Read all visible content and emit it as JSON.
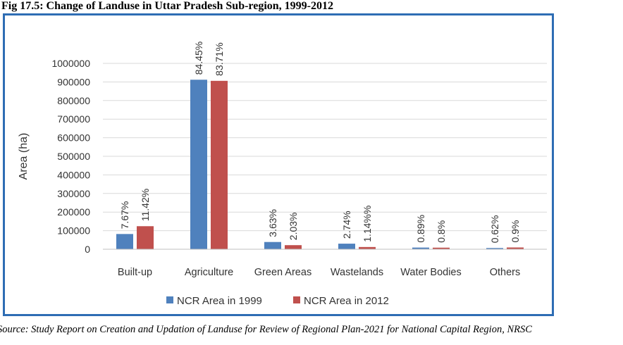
{
  "figure": {
    "title": "Fig 17.5:  Change of Landuse in Uttar Pradesh Sub-region, 1999-2012",
    "source": "Source: Study Report on Creation and Updation of Landuse for Review of Regional Plan-2021 for National Capital Region, NRSC"
  },
  "chart_data": {
    "type": "bar",
    "title": "",
    "xlabel": "",
    "ylabel": "Area (ha)",
    "ylim": [
      0,
      1000000
    ],
    "yticks": [
      0,
      100000,
      200000,
      300000,
      400000,
      500000,
      600000,
      700000,
      800000,
      900000,
      1000000
    ],
    "categories": [
      "Built-up",
      "Agriculture",
      "Green Areas",
      "Wastelands",
      "Water Bodies",
      "Others"
    ],
    "series": [
      {
        "name": "NCR Area in 1999",
        "color": "#4f81bd",
        "values": [
          82000,
          912000,
          39000,
          30000,
          9000,
          6500
        ],
        "labels": [
          "7.67%",
          "84.45%",
          "3.63%",
          "2.74%",
          "0.89%",
          "0.62%"
        ]
      },
      {
        "name": "NCR Area in 2012",
        "color": "#c0504d",
        "values": [
          124000,
          906000,
          22000,
          12000,
          8500,
          9500
        ],
        "labels": [
          "11.42%",
          "83.71%",
          "2.03%",
          "1.14%%",
          "0.8%",
          "0.9%"
        ]
      }
    ],
    "grid": true,
    "legend": "bottom"
  }
}
